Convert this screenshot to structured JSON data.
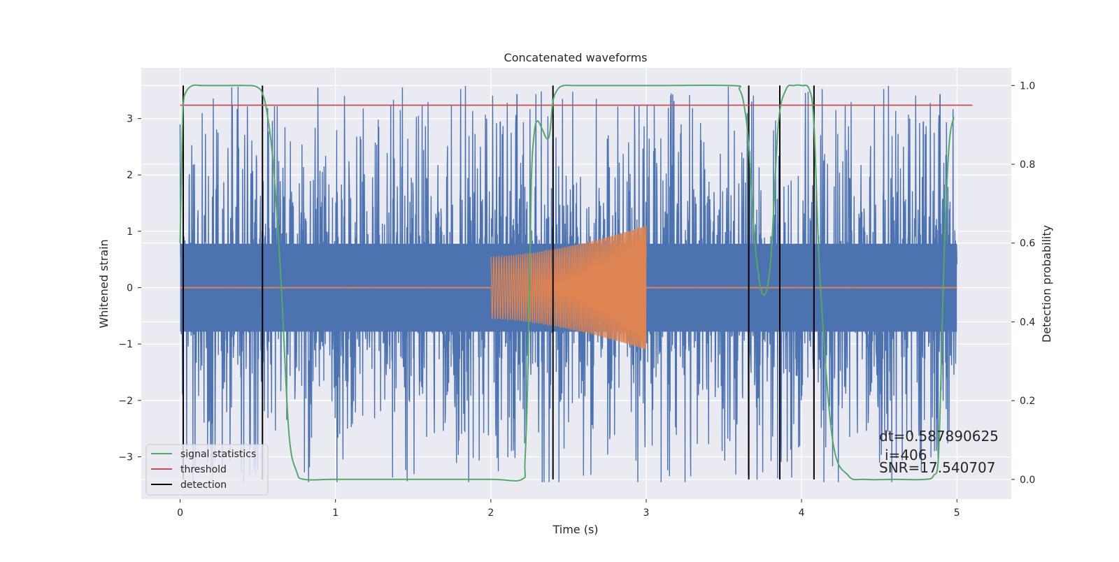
{
  "chart_data": {
    "type": "line",
    "title": "Concatenated waveforms",
    "xlabel": "Time (s)",
    "ylabel": "Whitened strain",
    "ylabel_right": "Detection probability",
    "xlim": [
      -0.25,
      5.35
    ],
    "ylim": [
      -3.75,
      3.9
    ],
    "ylim_right": [
      -0.05,
      1.045
    ],
    "x_ticks": [
      "0",
      "1",
      "2",
      "3",
      "4",
      "5"
    ],
    "x_tick_values": [
      0,
      1,
      2,
      3,
      4,
      5
    ],
    "y_ticks": [
      "−3",
      "−2",
      "−1",
      "0",
      "1",
      "2",
      "3"
    ],
    "y_tick_values": [
      -3,
      -2,
      -1,
      0,
      1,
      2,
      3
    ],
    "y_ticks_right": [
      "0.0",
      "0.2",
      "0.4",
      "0.6",
      "0.8",
      "1.0"
    ],
    "y_tick_values_right": [
      0.0,
      0.2,
      0.4,
      0.6,
      0.8,
      1.0
    ],
    "grid": true,
    "legend_position": "lower-left",
    "legend": [
      {
        "label": "signal statistics",
        "color": "#55a868"
      },
      {
        "label": "threshold",
        "color": "#c44e52"
      },
      {
        "label": "detection",
        "color": "#000000"
      }
    ],
    "annotations": [
      "dt=0.587890625",
      "i=406",
      "SNR=17.540707"
    ],
    "series": [
      {
        "label_ref": "strain",
        "color": "#4c72b0",
        "axis": "left",
        "x_range": [
          0,
          5
        ],
        "core_amplitude": 0.78,
        "spike_amplitude_max": 3.6,
        "description_of_shape": "noise"
      },
      {
        "label_ref": "template",
        "color": "#dd8452",
        "axis": "left",
        "chirp": {
          "x_start": 2.0,
          "x_end": 3.0,
          "amp_start": 0.55,
          "amp_end": 1.1
        },
        "zero_elsewhere": true
      },
      {
        "label_ref": "signal statistics",
        "color": "#55a868",
        "axis": "right",
        "x": [
          0.0,
          0.01,
          0.02,
          0.04,
          0.08,
          0.15,
          0.3,
          0.45,
          0.5,
          0.53,
          0.56,
          0.6,
          0.65,
          0.7,
          0.75,
          0.8,
          1.0,
          1.5,
          2.0,
          2.2,
          2.22,
          2.24,
          2.26,
          2.28,
          2.3,
          2.33,
          2.36,
          2.38,
          2.4,
          2.43,
          2.47,
          2.55,
          3.0,
          3.55,
          3.6,
          3.63,
          3.66,
          3.7,
          3.75,
          3.8,
          3.85,
          3.9,
          3.95,
          4.0,
          4.05,
          4.08,
          4.12,
          4.2,
          4.3,
          4.4,
          4.6,
          4.8,
          4.85,
          4.88,
          4.9,
          4.92,
          4.95,
          4.98
        ],
        "y": [
          0.6,
          0.8,
          0.95,
          0.985,
          1.0,
          1.0,
          1.0,
          1.0,
          0.995,
          0.98,
          0.93,
          0.8,
          0.5,
          0.12,
          0.02,
          0.0,
          0.0,
          0.0,
          0.0,
          0.0,
          0.05,
          0.3,
          0.75,
          0.88,
          0.91,
          0.89,
          0.865,
          0.88,
          0.96,
          0.99,
          1.0,
          1.0,
          1.0,
          1.0,
          0.99,
          0.95,
          0.85,
          0.6,
          0.47,
          0.55,
          0.9,
          0.99,
          1.0,
          1.0,
          0.99,
          0.9,
          0.5,
          0.1,
          0.01,
          0.0,
          0.0,
          0.0,
          0.01,
          0.05,
          0.3,
          0.6,
          0.85,
          0.92
        ]
      },
      {
        "label_ref": "threshold",
        "color": "#c44e52",
        "axis": "right",
        "x": [
          0,
          5.1
        ],
        "y": [
          0.95,
          0.95
        ]
      }
    ],
    "detections_x": [
      0.02,
      0.53,
      2.4,
      3.66,
      3.86,
      4.08
    ]
  }
}
